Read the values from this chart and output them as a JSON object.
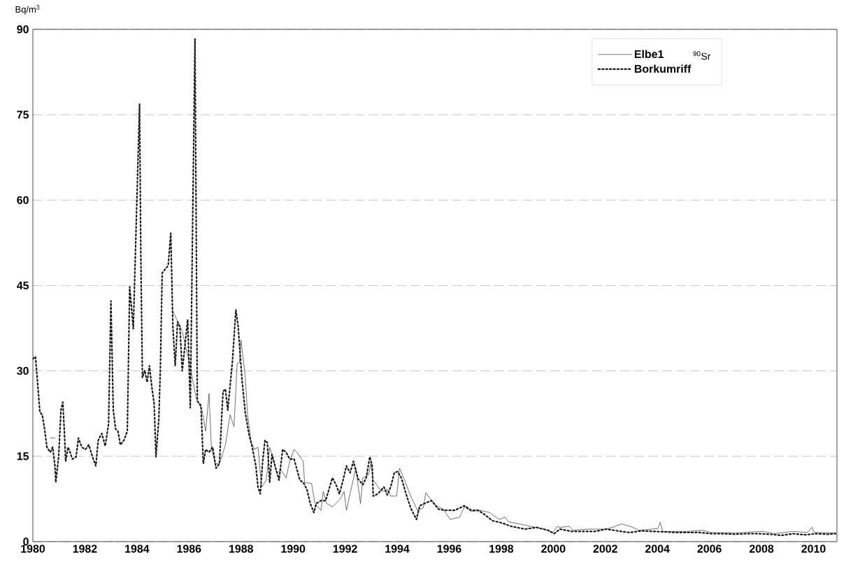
{
  "chart_data": {
    "type": "line",
    "ylabel": "Bq/m$^{3}$",
    "annotations": [
      "$^{90}$Sr"
    ],
    "xlim": [
      1980,
      2010.9
    ],
    "ylim": [
      0,
      90
    ],
    "xticks": [
      1980,
      {
        "value": 1981,
        "label": null
      },
      1982,
      {
        "value": 1983,
        "label": null
      },
      1984,
      {
        "value": 1985,
        "label": null
      },
      1986,
      {
        "value": 1987,
        "label": null
      },
      1988,
      {
        "value": 1989,
        "label": null
      },
      1990,
      {
        "value": 1991,
        "label": null
      },
      1992,
      {
        "value": 1993,
        "label": null
      },
      1994,
      {
        "value": 1995,
        "label": null
      },
      1996,
      {
        "value": 1997,
        "label": null
      },
      1998,
      {
        "value": 1999,
        "label": null
      },
      2000,
      {
        "value": 2001,
        "label": null
      },
      2002,
      {
        "value": 2003,
        "label": null
      },
      2004,
      {
        "value": 2005,
        "label": null
      },
      2006,
      {
        "value": 2007,
        "label": null
      },
      2008,
      {
        "value": 2009,
        "label": null
      },
      2010
    ],
    "yticks": [
      0,
      15,
      30,
      45,
      60,
      75,
      90
    ],
    "grid": "y",
    "legend": "top right",
    "marker": "none",
    "series": [
      {
        "name": "Elbe1",
        "color": "#333333",
        "line_style": "solid",
        "x": [
          1980.67,
          1980.85,
          1983.0,
          1985.36,
          1985.52,
          1985.74,
          1985.87,
          1986.01,
          1986.14,
          1986.28,
          1986.5,
          1986.64,
          1986.77,
          1986.86,
          1987.0,
          1987.17,
          1987.4,
          1987.58,
          1987.73,
          1987.85,
          1987.94,
          1988.0,
          1988.07,
          1988.16,
          1988.25,
          1988.39,
          1988.52,
          1988.65,
          1988.79,
          1988.97,
          1989.1,
          1989.24,
          1989.37,
          1989.55,
          1989.73,
          1989.87,
          1990.04,
          1990.21,
          1990.39,
          1990.44,
          1990.71,
          1990.84,
          1991.07,
          1991.16,
          1991.29,
          1991.51,
          1991.83,
          1991.96,
          1992.05,
          1992.23,
          1992.41,
          1992.59,
          1992.68,
          1992.9,
          1992.99,
          1993.08,
          1993.4,
          1993.62,
          1993.75,
          1993.98,
          1994.09,
          1994.25,
          1994.52,
          1994.78,
          1995.0,
          1995.1,
          1995.23,
          1995.5,
          1995.77,
          1996.04,
          1996.4,
          1996.58,
          1996.85,
          1997.2,
          1997.56,
          1997.92,
          1998.15,
          1998.28,
          1998.91,
          1999.62,
          1999.98,
          2000.16,
          2000.26,
          2000.61,
          2000.75,
          2001.33,
          2002.05,
          2002.32,
          2002.63,
          2002.94,
          2003.3,
          2004.02,
          2004.11,
          2004.2,
          2005.19,
          2005.72,
          2006.08,
          2006.98,
          2008.05,
          2008.5,
          2009.22,
          2009.76,
          2009.94,
          2010.03,
          2010.85
        ],
        "values": [
          18.2,
          18.2,
          null,
          40.7,
          39.1,
          37.0,
          34.2,
          31.7,
          28.4,
          25.2,
          23.1,
          19.4,
          26.0,
          16.6,
          13.7,
          13.7,
          17.0,
          22.3,
          20.2,
          31.3,
          31.5,
          35.4,
          32.5,
          29.2,
          22.3,
          17.4,
          16.2,
          16.6,
          9.6,
          10.8,
          16.6,
          14.5,
          12.1,
          12.5,
          11.2,
          14.1,
          16.2,
          15.3,
          14.1,
          10.4,
          10.2,
          6.7,
          5.5,
          8.8,
          6.7,
          6.1,
          7.6,
          8.8,
          5.5,
          9.2,
          12.9,
          6.7,
          11.2,
          11.7,
          13.7,
          10.8,
          8.8,
          9.2,
          8.0,
          8.0,
          12.9,
          11.2,
          8.0,
          5.5,
          5.9,
          8.6,
          7.8,
          6.3,
          5.7,
          3.9,
          4.3,
          6.1,
          5.3,
          5.5,
          5.1,
          3.9,
          4.3,
          3.5,
          2.9,
          2.2,
          1.6,
          2.7,
          2.5,
          2.7,
          2.0,
          2.2,
          2.2,
          2.6,
          3.1,
          2.7,
          2.0,
          2.3,
          3.4,
          1.8,
          1.8,
          2.0,
          1.6,
          1.5,
          1.8,
          1.4,
          1.8,
          1.6,
          2.5,
          1.6,
          1.5
        ]
      },
      {
        "name": "Borkumriff",
        "color": "#1a1a1a",
        "line_style": "dotted",
        "x": [
          1980.0,
          1980.1,
          1980.18,
          1980.27,
          1980.36,
          1980.45,
          1980.54,
          1980.67,
          1980.76,
          1980.85,
          1980.88,
          1980.99,
          1981.08,
          1981.15,
          1981.21,
          1981.26,
          1981.35,
          1981.43,
          1981.52,
          1981.66,
          1981.75,
          1981.88,
          1982.02,
          1982.15,
          1982.29,
          1982.42,
          1982.51,
          1982.65,
          1982.78,
          1982.91,
          1983.0,
          1983.05,
          1983.09,
          1983.18,
          1983.27,
          1983.36,
          1983.5,
          1983.63,
          1983.72,
          1983.86,
          1984.1,
          1984.15,
          1984.21,
          1984.3,
          1984.39,
          1984.48,
          1984.57,
          1984.66,
          1984.73,
          1984.84,
          1984.9,
          1984.97,
          1985.2,
          1985.3,
          1985.38,
          1985.47,
          1985.56,
          1985.65,
          1985.74,
          1985.95,
          1986.05,
          1986.23,
          1986.32,
          1986.46,
          1986.55,
          1986.64,
          1986.77,
          1986.91,
          1987.04,
          1987.17,
          1987.26,
          1987.31,
          1987.4,
          1987.49,
          1987.67,
          1987.8,
          1987.89,
          1988.03,
          1988.16,
          1988.3,
          1988.43,
          1988.57,
          1988.65,
          1988.74,
          1988.83,
          1988.92,
          1989.01,
          1989.1,
          1989.19,
          1989.33,
          1989.46,
          1989.6,
          1989.73,
          1989.87,
          1990.04,
          1990.26,
          1990.39,
          1990.53,
          1990.66,
          1990.8,
          1990.89,
          1991.07,
          1991.25,
          1991.38,
          1991.51,
          1991.65,
          1991.78,
          1991.92,
          1992.05,
          1992.19,
          1992.32,
          1992.5,
          1992.68,
          1992.81,
          1992.95,
          1993.04,
          1993.08,
          1993.26,
          1993.49,
          1993.62,
          1993.75,
          1993.89,
          1994.02,
          1994.16,
          1994.34,
          1994.52,
          1994.74,
          1994.87,
          1995.05,
          1995.32,
          1995.59,
          1995.86,
          1996.22,
          1996.58,
          1996.85,
          1997.11,
          1997.38,
          1997.65,
          1998.01,
          1998.37,
          1998.91,
          1999.35,
          1999.8,
          2000.03,
          2000.26,
          2000.7,
          2001.15,
          2001.6,
          2002.05,
          2002.6,
          2002.94,
          2003.39,
          2003.84,
          2004.29,
          2004.74,
          2005.19,
          2005.63,
          2006.08,
          2006.53,
          2006.98,
          2007.43,
          2007.88,
          2008.32,
          2008.77,
          2009.22,
          2009.67,
          2010.12,
          2010.56,
          2010.85
        ],
        "values": [
          32.1,
          32.5,
          28,
          22.7,
          22.3,
          19.8,
          16.6,
          15.7,
          16.6,
          13.3,
          10.4,
          14.9,
          23.1,
          24.5,
          19.4,
          14.1,
          16.6,
          15.7,
          14.5,
          14.9,
          18.2,
          16.6,
          16.2,
          17.0,
          14.9,
          13.3,
          17.8,
          19.0,
          16.8,
          20.7,
          42.3,
          31.7,
          23.1,
          19.8,
          19.4,
          17.0,
          17.8,
          19.4,
          44.8,
          37.4,
          76.9,
          50,
          28.8,
          30.1,
          28.0,
          30.9,
          27.2,
          24.3,
          14.9,
          21.5,
          30.5,
          47.2,
          48.5,
          54.2,
          37.8,
          30.9,
          38.6,
          37.8,
          30.0,
          39.0,
          23.5,
          88.3,
          24.7,
          23.9,
          13.7,
          16.2,
          15.7,
          16.6,
          12.9,
          13.7,
          22.3,
          26.4,
          26.8,
          23.1,
          31.7,
          40.7,
          37.8,
          28.8,
          22.7,
          19.0,
          16.6,
          13.3,
          9.6,
          8.4,
          14.1,
          17.8,
          17.4,
          10.4,
          15.3,
          12.9,
          10.8,
          16.2,
          15.7,
          14.5,
          14.5,
          10.8,
          10.4,
          9.2,
          6.7,
          5.1,
          6.7,
          7.2,
          7.2,
          9.2,
          11.2,
          10.0,
          8.4,
          10.8,
          13.3,
          12.1,
          14.1,
          11.0,
          10.0,
          11.2,
          14.9,
          13.3,
          8.0,
          8.4,
          9.6,
          8.2,
          9.6,
          12.1,
          12.3,
          11.2,
          8.4,
          5.9,
          3.9,
          6.3,
          6.7,
          7.2,
          5.7,
          5.5,
          5.5,
          6.3,
          5.5,
          5.5,
          4.7,
          3.7,
          3.3,
          2.7,
          2.2,
          2.5,
          2.0,
          1.4,
          2.2,
          1.8,
          1.8,
          1.8,
          2.2,
          1.8,
          1.6,
          1.9,
          1.8,
          1.7,
          1.6,
          1.6,
          1.6,
          1.4,
          1.4,
          1.3,
          1.4,
          1.4,
          1.3,
          1.1,
          1.4,
          1.2,
          1.4,
          1.3,
          1.4
        ]
      }
    ]
  }
}
